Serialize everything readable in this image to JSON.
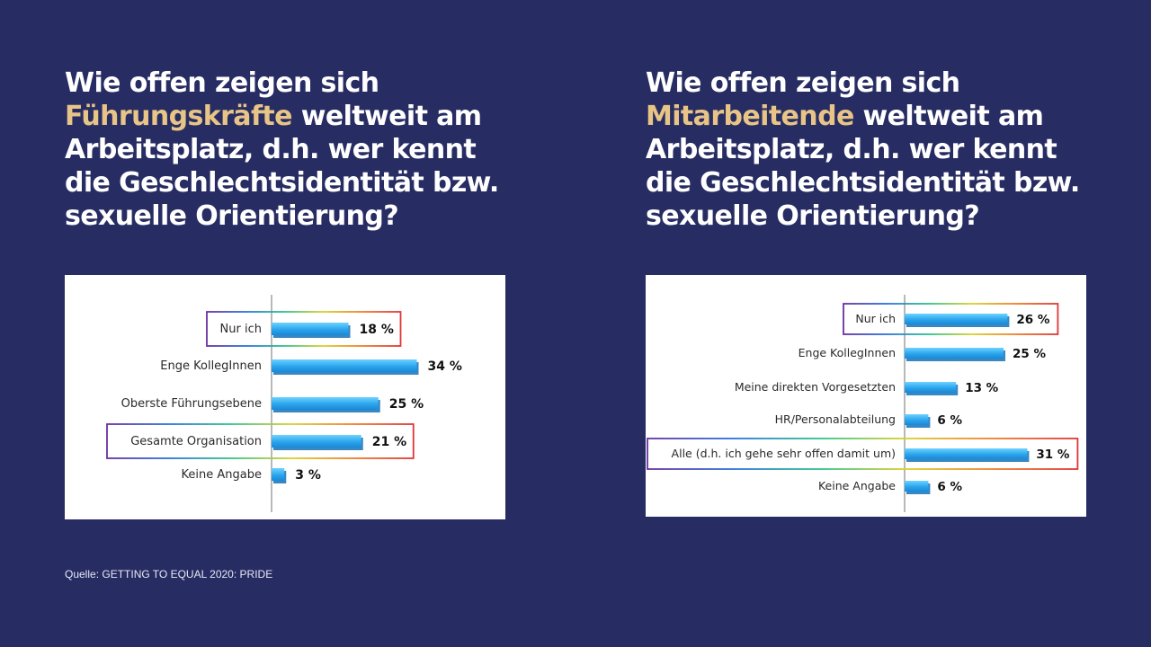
{
  "colors": {
    "background": "#272d63",
    "heading_text": "#ffffff",
    "heading_highlight": "#e8c486",
    "bar": "#2ba5ec",
    "bar_light": "#6dd2ff",
    "rainbow": [
      "#6a2fa0",
      "#2a72e0",
      "#2bc48a",
      "#d9d12a",
      "#ef7f2a",
      "#e03535"
    ]
  },
  "left": {
    "heading": {
      "line1": "Wie offen zeigen sich",
      "highlight": "Führungskräfte",
      "rest_line2": " weltweit am",
      "line3": "Arbeitsplatz, d.h. wer kennt",
      "line4": "die Geschlechtsidentität bzw.",
      "line5": "sexuelle Orientierung?"
    }
  },
  "right": {
    "heading": {
      "line1": "Wie offen zeigen sich",
      "highlight": "Mitarbeitende",
      "rest_line2": " weltweit am",
      "line3": "Arbeitsplatz, d.h. wer kennt",
      "line4": "die Geschlechtsidentität bzw.",
      "line5": "sexuelle Orientierung?"
    }
  },
  "chart_data": [
    {
      "type": "bar",
      "orientation": "horizontal",
      "title": "Führungskräfte",
      "unit": "%",
      "xlim": [
        0,
        40
      ],
      "categories": [
        "Nur ich",
        "Enge KollegInnen",
        "Oberste Führungsebene",
        "Gesamte Organisation",
        "Keine Angabe"
      ],
      "values": [
        18,
        34,
        25,
        21,
        3
      ],
      "value_labels": [
        "18 %",
        "34 %",
        "25 %",
        "21 %",
        "3 %"
      ],
      "highlighted": [
        "Nur ich",
        "Gesamte Organisation"
      ]
    },
    {
      "type": "bar",
      "orientation": "horizontal",
      "title": "Mitarbeitende",
      "unit": "%",
      "xlim": [
        0,
        40
      ],
      "categories": [
        "Nur ich",
        "Enge KollegInnen",
        "Meine direkten Vorgesetzten",
        "HR/Personalabteilung",
        "Alle (d.h. ich gehe sehr offen damit um)",
        "Keine Angabe"
      ],
      "values": [
        26,
        25,
        13,
        6,
        31,
        6
      ],
      "value_labels": [
        "26 %",
        "25 %",
        "13 %",
        "6 %",
        "31 %",
        "6 %"
      ],
      "highlighted": [
        "Nur ich",
        "Alle (d.h. ich gehe sehr offen damit um)"
      ]
    }
  ],
  "source": "Quelle:  GETTING TO EQUAL 2020: PRIDE"
}
